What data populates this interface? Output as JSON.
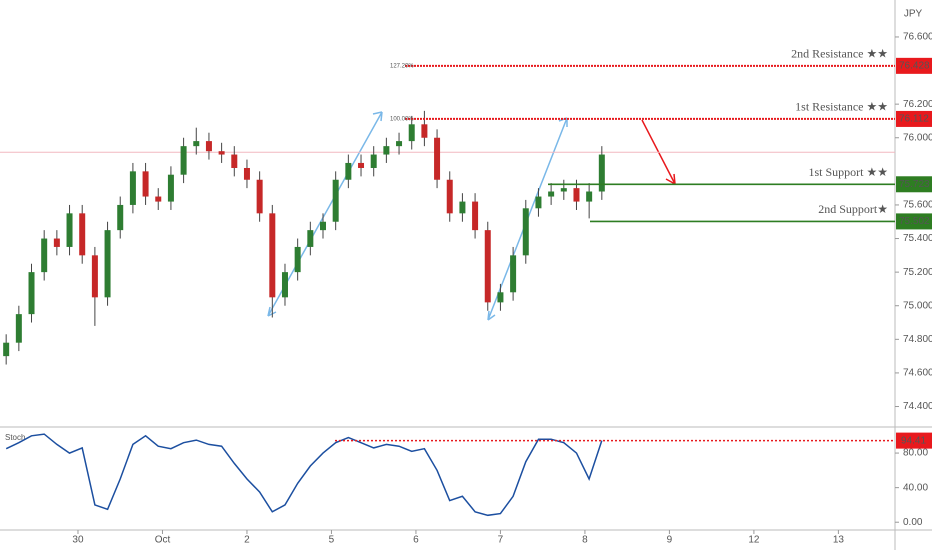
{
  "chart_data": [
    {
      "type": "candlestick",
      "currency": "JPY",
      "x": [
        0.15,
        0.3,
        0.45,
        0.6,
        0.75,
        0.9,
        1.05,
        1.2,
        1.35,
        1.5,
        1.65,
        1.8,
        1.95,
        2.1,
        2.25,
        2.4,
        2.55,
        2.7,
        2.85,
        3,
        3.15,
        3.3,
        3.45,
        3.6,
        3.75,
        3.9,
        4.05,
        4.2,
        4.35,
        4.5,
        4.65,
        4.8,
        4.95,
        5.1,
        5.25,
        5.4,
        5.55,
        5.7,
        5.85,
        6,
        6.15,
        6.3,
        6.45,
        6.6,
        6.75,
        6.9,
        7.05,
        7.2
      ],
      "open": [
        74.7,
        74.78,
        74.95,
        75.2,
        75.4,
        75.35,
        75.55,
        75.3,
        75.05,
        75.45,
        75.6,
        75.8,
        75.65,
        75.62,
        75.78,
        75.95,
        75.98,
        75.92,
        75.9,
        75.82,
        75.75,
        75.55,
        75.05,
        75.2,
        75.35,
        75.45,
        75.5,
        75.75,
        75.85,
        75.82,
        75.9,
        75.95,
        75.98,
        76.08,
        76.0,
        75.75,
        75.55,
        75.62,
        75.45,
        75.02,
        75.08,
        75.3,
        75.58,
        75.65,
        75.68,
        75.7,
        75.62,
        75.68
      ],
      "high": [
        74.83,
        75.0,
        75.25,
        75.45,
        75.45,
        75.6,
        75.6,
        75.35,
        75.5,
        75.65,
        75.85,
        75.85,
        75.7,
        75.83,
        76.0,
        76.06,
        76.03,
        75.97,
        75.95,
        75.87,
        75.8,
        75.6,
        75.25,
        75.4,
        75.5,
        75.55,
        75.8,
        75.9,
        75.9,
        75.95,
        76.0,
        76.03,
        76.13,
        76.16,
        76.05,
        75.8,
        75.67,
        75.67,
        75.5,
        75.13,
        75.35,
        75.63,
        75.7,
        75.73,
        75.75,
        75.75,
        75.73,
        75.95
      ],
      "low": [
        74.65,
        74.73,
        74.9,
        75.15,
        75.3,
        75.3,
        75.25,
        74.88,
        75.0,
        75.4,
        75.55,
        75.6,
        75.57,
        75.57,
        75.73,
        75.9,
        75.87,
        75.85,
        75.77,
        75.7,
        75.5,
        74.93,
        75.0,
        75.15,
        75.3,
        75.4,
        75.45,
        75.7,
        75.77,
        75.77,
        75.85,
        75.9,
        75.93,
        75.95,
        75.7,
        75.5,
        75.5,
        75.4,
        74.97,
        74.97,
        75.03,
        75.25,
        75.53,
        75.6,
        75.63,
        75.57,
        75.52,
        75.63
      ],
      "close": [
        74.78,
        74.95,
        75.2,
        75.4,
        75.35,
        75.55,
        75.3,
        75.05,
        75.45,
        75.6,
        75.8,
        75.65,
        75.62,
        75.78,
        75.95,
        75.98,
        75.92,
        75.9,
        75.82,
        75.75,
        75.55,
        75.05,
        75.2,
        75.35,
        75.45,
        75.5,
        75.75,
        75.85,
        75.82,
        75.9,
        75.95,
        75.98,
        76.08,
        76.0,
        75.75,
        75.55,
        75.62,
        75.45,
        75.02,
        75.08,
        75.3,
        75.58,
        75.65,
        75.68,
        75.7,
        75.62,
        75.68,
        75.9
      ],
      "up_color": "#2e7d32",
      "down_color": "#c62828",
      "last_price": 75.914,
      "xlim": [
        0.077,
        10.67
      ],
      "xticks": [
        {
          "value": 1,
          "label": "30"
        },
        {
          "value": 2,
          "label": "Oct"
        },
        {
          "value": 3,
          "label": "2"
        },
        {
          "value": 4,
          "label": "5"
        },
        {
          "value": 5,
          "label": "6"
        },
        {
          "value": 6,
          "label": "7"
        },
        {
          "value": 7,
          "label": "8"
        },
        {
          "value": 8,
          "label": "9"
        },
        {
          "value": 9,
          "label": "12"
        },
        {
          "value": 10,
          "label": "13"
        }
      ],
      "ylim": [
        74.29,
        76.82
      ],
      "yticks": [
        {
          "value": 76.6,
          "label": "76.600"
        },
        {
          "value": 76.2,
          "label": "76.200"
        },
        {
          "value": 76.0,
          "label": "76.000"
        },
        {
          "value": 75.6,
          "label": "75.600"
        },
        {
          "value": 75.4,
          "label": "75.400"
        },
        {
          "value": 75.2,
          "label": "75.200"
        },
        {
          "value": 75.0,
          "label": "75.000"
        },
        {
          "value": 74.8,
          "label": "74.800"
        },
        {
          "value": 74.6,
          "label": "74.600"
        },
        {
          "value": 74.4,
          "label": "74.400"
        }
      ],
      "levels": [
        {
          "name": "2nd Resistance ★★",
          "value": 76.428,
          "label": "76.428",
          "color": "#e8191d"
        },
        {
          "name": "1st Resistance ★★",
          "value": 76.112,
          "label": "76.112",
          "color": "#e8191d"
        },
        {
          "name": "1st Support ★★",
          "value": 75.723,
          "label": "75.723",
          "color": "#2e7d22"
        },
        {
          "name": "2nd Support★",
          "value": 75.502,
          "label": "75.502",
          "color": "#2e7d22"
        }
      ],
      "fib_labels": [
        "127.20%",
        "100.00%"
      ]
    },
    {
      "type": "line",
      "title": "Stoch",
      "color": "#1c4fa0",
      "values": [
        85,
        92,
        100,
        102,
        90,
        80,
        86,
        20,
        15,
        50,
        90,
        100,
        88,
        85,
        92,
        95,
        90,
        88,
        68,
        50,
        35,
        12,
        20,
        45,
        65,
        80,
        92,
        98,
        92,
        86,
        90,
        88,
        82,
        85,
        60,
        25,
        30,
        12,
        8,
        10,
        30,
        70,
        96,
        96,
        92,
        80,
        50,
        94.41
      ],
      "last_color": "#e8191d",
      "ylim": [
        -9,
        109
      ],
      "yticks": [
        {
          "value": 80,
          "label": "80.00"
        },
        {
          "value": 40,
          "label": "40.00"
        },
        {
          "value": 0,
          "label": "0.00"
        }
      ]
    }
  ]
}
